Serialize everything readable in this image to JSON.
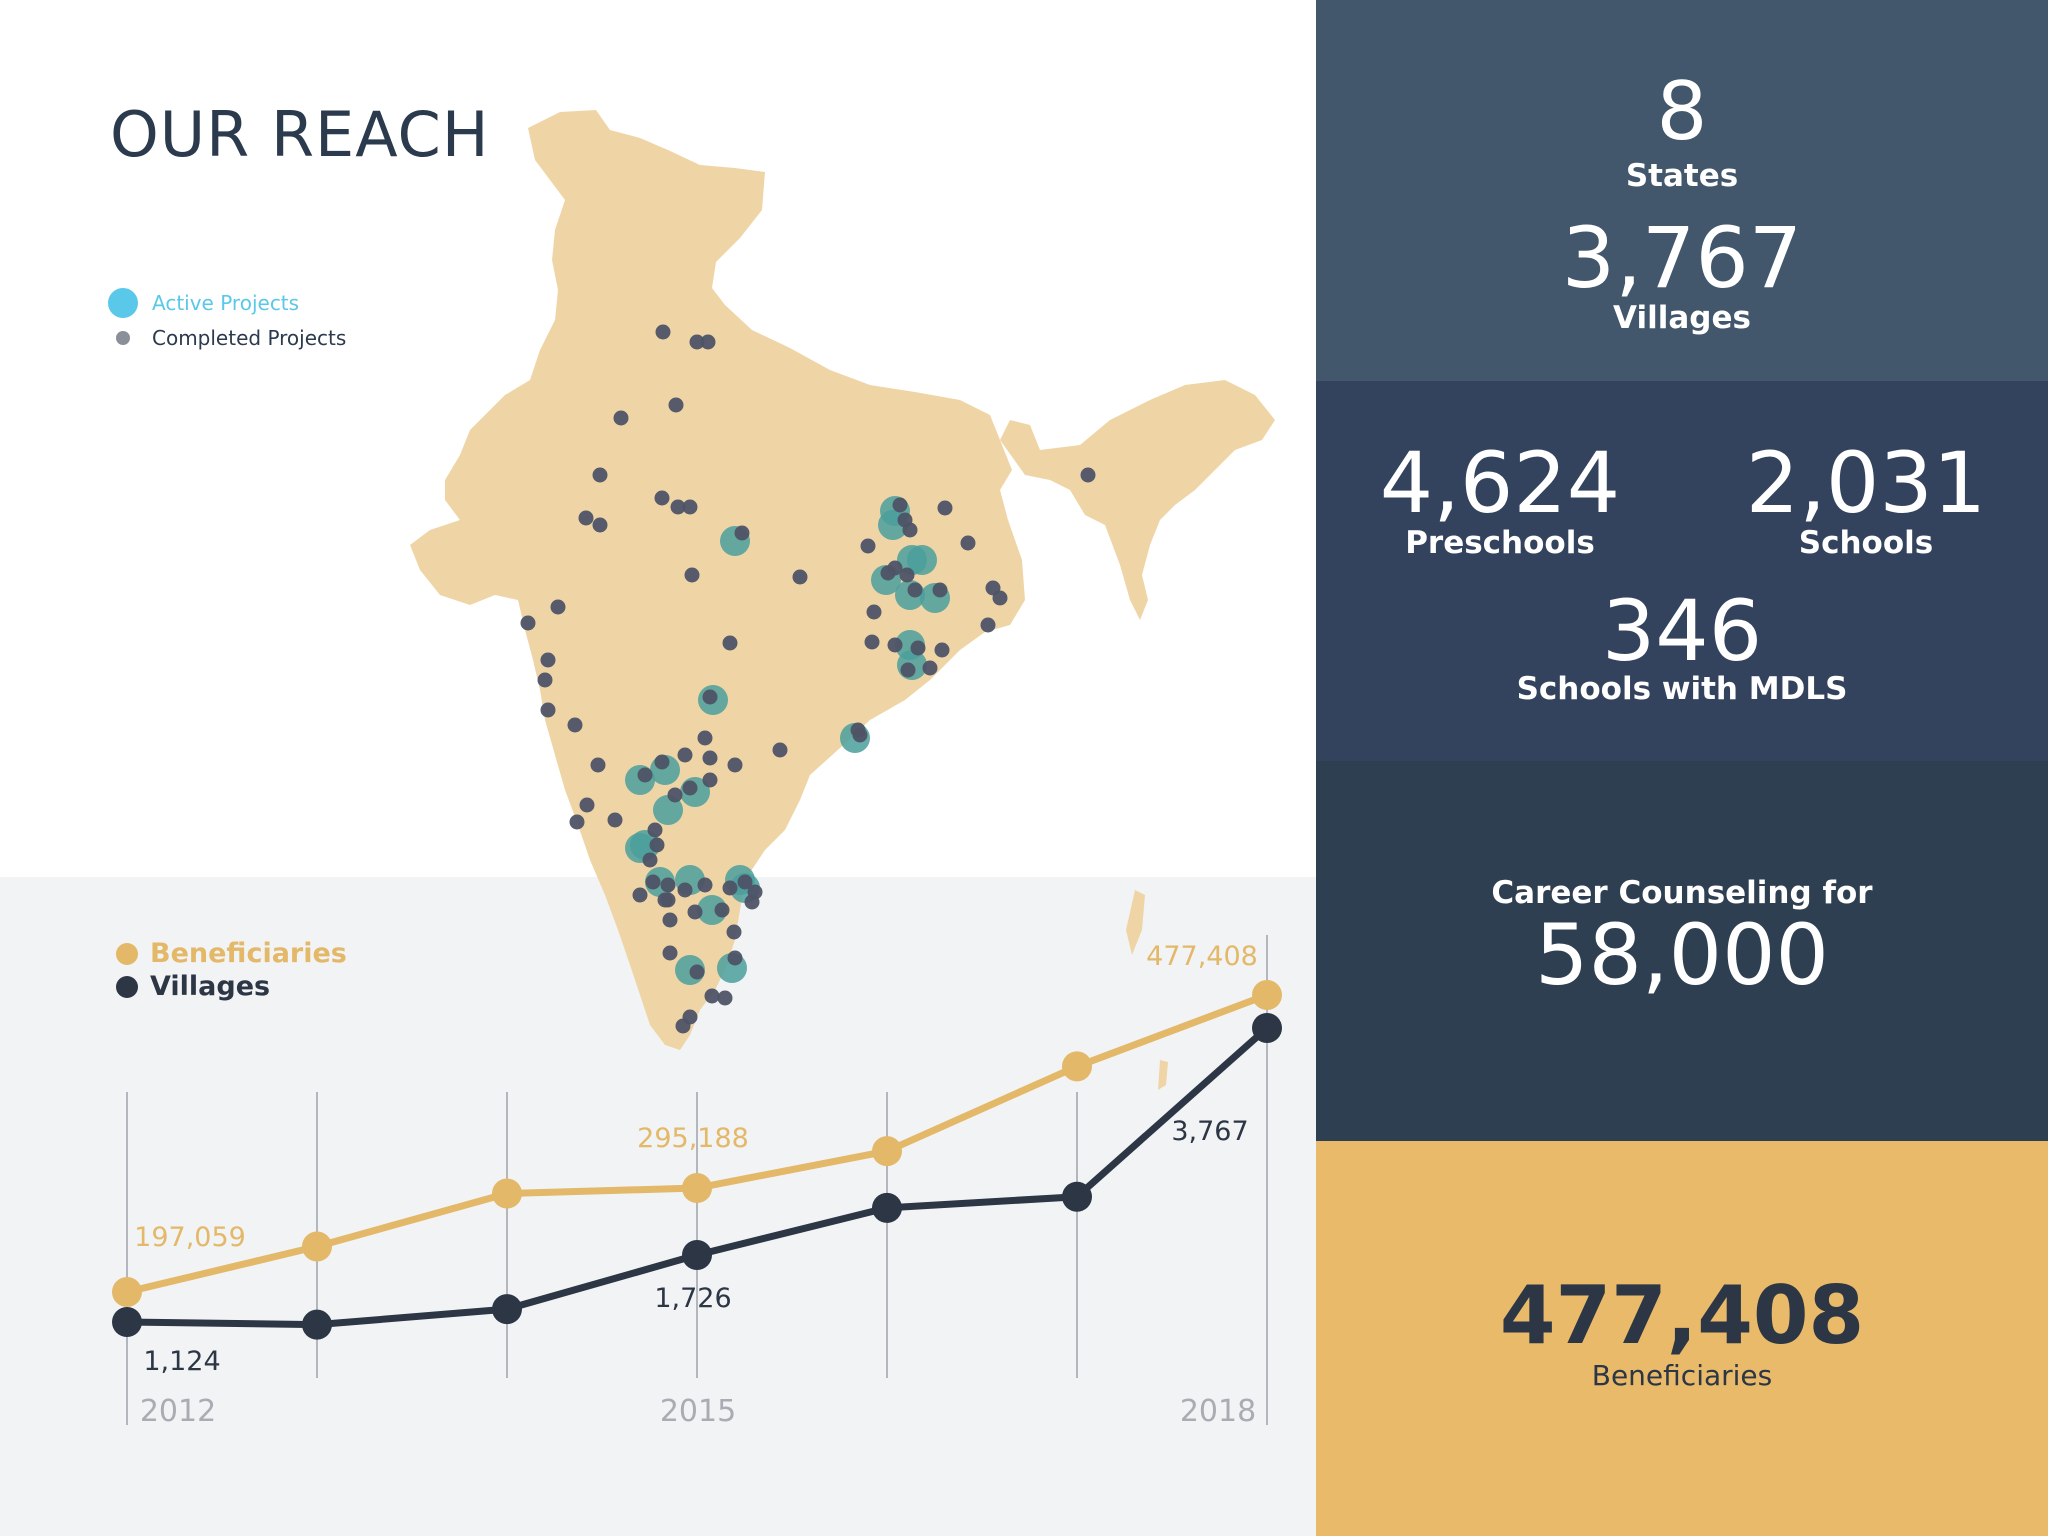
{
  "title": "OUR REACH",
  "map_legend": {
    "active": {
      "label": "Active Projects",
      "color": "#5ac8e8"
    },
    "completed": {
      "label": "Completed Projects",
      "color": "#8a8f99"
    }
  },
  "chart_legend": {
    "beneficiaries": {
      "label": "Beneficiaries",
      "color": "#e3b868"
    },
    "villages": {
      "label": "Villages",
      "color": "#2c3645"
    }
  },
  "chart_data": {
    "type": "line",
    "x": [
      2012,
      2013,
      2014,
      2015,
      2016,
      2017,
      2018
    ],
    "x_tick_labels": [
      "2012",
      "2015",
      "2018"
    ],
    "series": [
      {
        "name": "Beneficiaries",
        "color": "#e3b868",
        "values": [
          197059,
          240000,
          290000,
          295188,
          330000,
          410000,
          477408
        ],
        "data_labels": [
          {
            "index": 0,
            "text": "197,059"
          },
          {
            "index": 3,
            "text": "295,188"
          },
          {
            "index": 6,
            "text": "477,408"
          }
        ]
      },
      {
        "name": "Villages",
        "color": "#2c3645",
        "values": [
          1124,
          1100,
          1240,
          1726,
          2150,
          2250,
          3767
        ],
        "data_labels": [
          {
            "index": 0,
            "text": "1,124"
          },
          {
            "index": 3,
            "text": "1,726"
          },
          {
            "index": 6,
            "text": "3,767"
          }
        ]
      }
    ],
    "grid": "vertical"
  },
  "panels": {
    "states_value": "8",
    "states_label": "States",
    "villages_value": "3,767",
    "villages_label": "Villages",
    "preschools_value": "4,624",
    "preschools_label": "Preschools",
    "schools_value": "2,031",
    "schools_label": "Schools",
    "mdls_value": "346",
    "mdls_label": "Schools with MDLS",
    "career_label": "Career Counseling for",
    "career_value": "58,000",
    "beneficiaries_value": "477,408",
    "beneficiaries_label": "Beneficiaries"
  },
  "colors": {
    "panel1": "#42566c",
    "panel2": "#34435d",
    "panel3": "#2f3f52",
    "panel4": "#e8ba6a",
    "map_land": "#efd5a6",
    "active_marker": "#4a9f9c",
    "completed_marker": "#4e5366"
  }
}
